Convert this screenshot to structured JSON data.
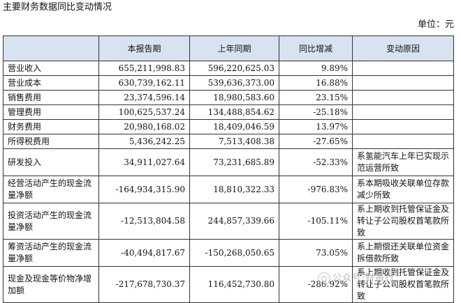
{
  "title": "主要财务数据同比变动情况",
  "unit": "单位：元",
  "columns": [
    "",
    "本报告期",
    "上年同期",
    "同比增减",
    "变动原因"
  ],
  "rows": [
    {
      "label": "营业收入",
      "current": "655,211,998.83",
      "previous": "596,220,625.03",
      "change": "9.89%",
      "reason": ""
    },
    {
      "label": "营业成本",
      "current": "630,739,162.11",
      "previous": "539,636,373.00",
      "change": "16.88%",
      "reason": ""
    },
    {
      "label": "销售费用",
      "current": "23,374,596.14",
      "previous": "18,980,583.60",
      "change": "23.15%",
      "reason": ""
    },
    {
      "label": "管理费用",
      "current": "100,625,537.24",
      "previous": "134,488,854.62",
      "change": "-25.18%",
      "reason": ""
    },
    {
      "label": "财务费用",
      "current": "20,980,168.02",
      "previous": "18,409,046.59",
      "change": "13.97%",
      "reason": ""
    },
    {
      "label": "所得税费用",
      "current": "5,436,242.25",
      "previous": "7,513,408.38",
      "change": "-27.65%",
      "reason": ""
    },
    {
      "label": "研发投入",
      "current": "34,911,027.64",
      "previous": "73,231,685.89",
      "change": "-52.33%",
      "reason": "系氢能汽车上年已实现示范运营所致"
    },
    {
      "label": "经营活动产生的现金流量净额",
      "current": "-164,934,315.90",
      "previous": "18,810,322.33",
      "change": "-976.83%",
      "reason": "系本期吸收关联单位存款减少所致"
    },
    {
      "label": "投资活动产生的现金流量净额",
      "current": "-12,513,804.58",
      "previous": "244,857,339.66",
      "change": "-105.11%",
      "reason": "系上期收到托管保证金及转让子公司股权首笔款所致"
    },
    {
      "label": "筹资活动产生的现金流量净额",
      "current": "-40,494,817.67",
      "previous": "-150,268,050.65",
      "change": "73.05%",
      "reason": "系上期偿还关联单位资金拆借款所致"
    },
    {
      "label": "现金及现金等价物净增加额",
      "current": "-217,678,730.37",
      "previous": "116,452,730.80",
      "change": "-286.92%",
      "reason": "系上期收到托管保证金及转让子公司股权首笔款所致"
    }
  ],
  "watermark": "公众号·财报行"
}
